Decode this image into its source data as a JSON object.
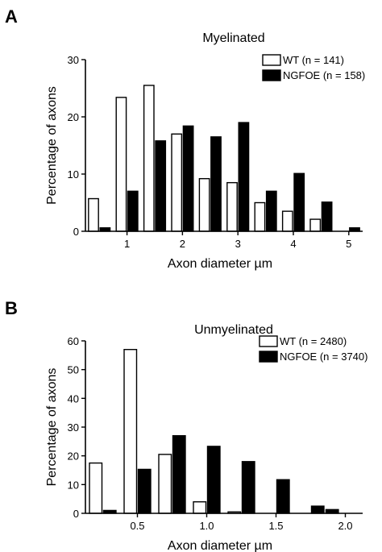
{
  "chart_data": [
    {
      "panel": "A",
      "type": "bar",
      "title": "Myelinated",
      "xlabel": "Axon diameter µm",
      "ylabel": "Percentage of axons",
      "x_ticks": [
        "1",
        "2",
        "3",
        "4",
        "5"
      ],
      "x_tick_values": [
        1,
        2,
        3,
        4,
        5
      ],
      "y_ticks": [
        "0",
        "10",
        "20",
        "30"
      ],
      "y_tick_values": [
        0,
        10,
        20,
        30
      ],
      "ylim": [
        0,
        30
      ],
      "xlim": [
        0.25,
        5.25
      ],
      "bin_width": 0.5,
      "bin_centers": [
        0.5,
        1.0,
        1.5,
        2.0,
        2.5,
        3.0,
        3.5,
        4.0,
        4.5,
        5.0
      ],
      "legend_placement": "top-right",
      "grid": false,
      "series": [
        {
          "name": "WT (n = 141)",
          "fill": "#ffffff",
          "values": [
            5.7,
            23.4,
            25.5,
            17.0,
            9.2,
            8.5,
            5.0,
            3.5,
            2.1,
            0
          ]
        },
        {
          "name": "NGFOE (n = 158)",
          "fill": "#000000",
          "values": [
            0.6,
            7.0,
            15.8,
            18.4,
            16.5,
            19.0,
            7.0,
            10.1,
            5.1,
            0.6
          ]
        }
      ]
    },
    {
      "panel": "B",
      "type": "bar",
      "title": "Unmyelinated",
      "xlabel": "Axon diameter µm",
      "ylabel": "Percentage of axons",
      "x_ticks": [
        "0.5",
        "1.0",
        "1.5",
        "2.0"
      ],
      "x_tick_values": [
        0.5,
        1.0,
        1.5,
        2.0
      ],
      "y_ticks": [
        "0",
        "10",
        "20",
        "30",
        "40",
        "50",
        "60"
      ],
      "y_tick_values": [
        0,
        10,
        20,
        30,
        40,
        50,
        60
      ],
      "ylim": [
        0,
        60
      ],
      "xlim": [
        0.125,
        2.125
      ],
      "bin_width": 0.25,
      "bin_centers": [
        0.25,
        0.5,
        0.75,
        1.0,
        1.25,
        1.5,
        1.75
      ],
      "legend_placement": "top-right",
      "grid": false,
      "series": [
        {
          "name": "WT (n = 2480)",
          "fill": "#ffffff",
          "values": [
            17.5,
            57.0,
            20.5,
            4.0,
            0.5,
            0,
            0
          ]
        },
        {
          "name": "NGFOE (n = 3740)",
          "fill": "#000000",
          "values": [
            1.0,
            15.3,
            27.0,
            23.3,
            18.0,
            11.7,
            2.5
          ]
        }
      ],
      "extra_bars": [
        {
          "series": 1,
          "x": 1.86,
          "value": 1.3
        }
      ]
    }
  ]
}
